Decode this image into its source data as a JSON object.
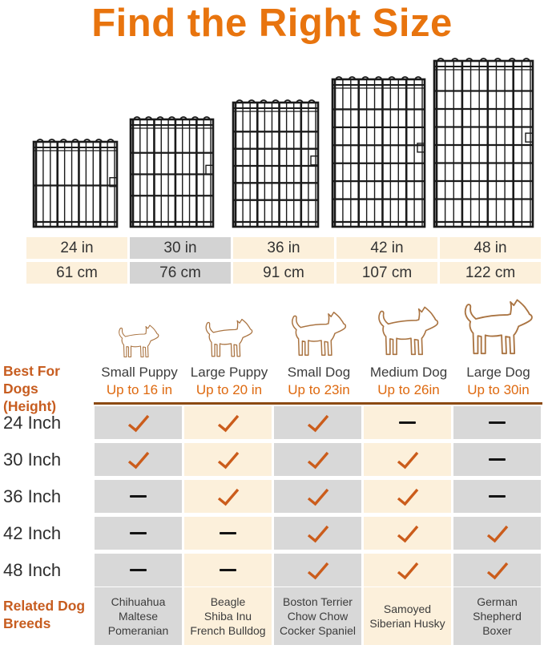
{
  "title": "Find the Right Size",
  "colors": {
    "title_orange": "#E8740E",
    "side_label_orange": "#C75D20",
    "height_label_orange": "#DE690F",
    "check_orange": "#CB5C1B",
    "dash_black": "#141414",
    "cell_cream": "#FCF0DB",
    "cell_gray": "#D8D8D8",
    "highlight_gray": "#D3D3D3",
    "divider_brown": "#8C4A12",
    "wire_black": "#1A1A1A",
    "dog_outline": "#AA7442"
  },
  "size_table": {
    "columns": [
      {
        "inches": "24 in",
        "cm": "61 cm",
        "highlighted": false
      },
      {
        "inches": "30 in",
        "cm": "76 cm",
        "highlighted": true
      },
      {
        "inches": "36 in",
        "cm": "91 cm",
        "highlighted": false
      },
      {
        "inches": "42 in",
        "cm": "107 cm",
        "highlighted": false
      },
      {
        "inches": "48 in",
        "cm": "122 cm",
        "highlighted": false
      }
    ]
  },
  "dogs": [
    {
      "name": "Small Puppy",
      "height": "Up to 16 in"
    },
    {
      "name": "Large Puppy",
      "height": "Up to 20 in"
    },
    {
      "name": "Small Dog",
      "height": "Up to 23in"
    },
    {
      "name": "Medium Dog",
      "height": "Up to 26in"
    },
    {
      "name": "Large Dog",
      "height": "Up to 30in"
    }
  ],
  "left_labels": {
    "best_for": "Best For Dogs (Height)",
    "related": "Related Dog Breeds"
  },
  "fit_table": {
    "rows": [
      {
        "label": "24 Inch",
        "fits": [
          true,
          true,
          true,
          false,
          false
        ]
      },
      {
        "label": "30 Inch",
        "fits": [
          true,
          true,
          true,
          true,
          false
        ]
      },
      {
        "label": "36 Inch",
        "fits": [
          false,
          true,
          true,
          true,
          false
        ]
      },
      {
        "label": "42 Inch",
        "fits": [
          false,
          false,
          true,
          true,
          true
        ]
      },
      {
        "label": "48 Inch",
        "fits": [
          false,
          false,
          true,
          true,
          true
        ]
      }
    ]
  },
  "breeds": [
    [
      "Chihuahua",
      "Maltese",
      "Pomeranian"
    ],
    [
      "Beagle",
      "Shiba Inu",
      "French Bulldog"
    ],
    [
      "Boston Terrier",
      "Chow Chow",
      "Cocker Spaniel"
    ],
    [
      "Samoyed",
      "Siberian Husky"
    ],
    [
      "German",
      "Shepherd",
      "Boxer"
    ]
  ]
}
